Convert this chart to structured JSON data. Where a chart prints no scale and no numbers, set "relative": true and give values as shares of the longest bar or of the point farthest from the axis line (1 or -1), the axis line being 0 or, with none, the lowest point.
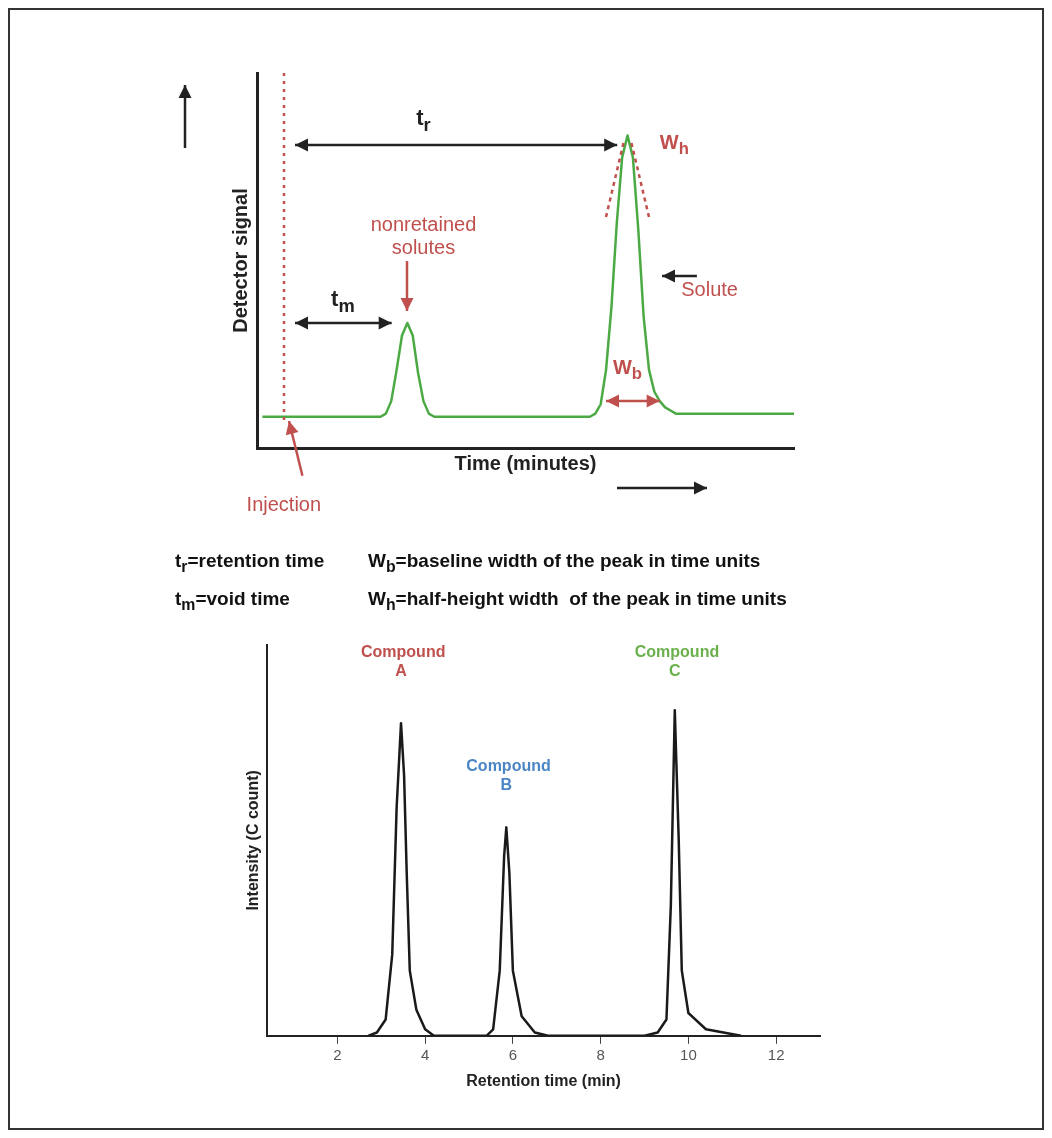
{
  "chart_data": [
    {
      "type": "line",
      "xlabel": "Time (minutes)",
      "ylabel": "Detector signal",
      "relative": true,
      "tick_labels": false,
      "grid": false,
      "legend": false,
      "marker": "none",
      "categories": [
        null,
        null,
        null,
        null,
        null,
        null,
        null,
        null,
        null,
        null,
        null,
        null,
        null,
        null,
        null,
        null,
        null,
        null,
        null,
        null,
        null,
        null,
        null,
        null,
        null,
        null,
        null,
        null,
        null,
        null,
        null,
        null,
        null,
        null,
        null,
        null,
        null,
        null,
        null,
        null,
        null,
        null,
        null,
        null,
        null,
        null,
        null,
        null,
        null,
        null,
        null,
        null,
        null,
        null,
        null,
        null,
        null,
        null,
        null,
        null,
        null,
        null,
        null,
        null,
        null,
        null,
        null,
        null,
        null,
        null,
        null,
        null,
        null,
        null,
        null,
        null,
        null,
        null,
        null,
        null,
        null,
        null,
        null,
        null,
        null,
        null,
        null,
        null,
        null,
        null,
        null,
        null,
        null,
        null,
        null,
        null,
        null,
        null,
        null,
        null,
        null
      ],
      "series": [
        {
          "color": "#4caa44",
          "values": [
            null,
            0.1,
            0.1,
            0.1,
            0.1,
            0.1,
            0.1,
            0.1,
            0.1,
            0.1,
            0.1,
            0.1,
            0.1,
            0.1,
            0.1,
            0.1,
            0.1,
            0.1,
            0.1,
            0.1,
            0.1,
            0.1,
            0.1,
            0.1,
            0.11,
            0.15,
            0.25,
            0.36,
            0.4,
            0.36,
            0.24,
            0.15,
            0.11,
            0.1,
            0.1,
            0.1,
            0.1,
            0.1,
            0.1,
            0.1,
            0.1,
            0.1,
            0.1,
            0.1,
            0.1,
            0.1,
            0.1,
            0.1,
            0.1,
            0.1,
            0.1,
            0.1,
            0.1,
            0.1,
            0.1,
            0.1,
            0.1,
            0.1,
            0.1,
            0.1,
            0.1,
            0.1,
            0.1,
            0.11,
            0.14,
            0.25,
            0.45,
            0.72,
            0.93,
            1,
            0.93,
            0.7,
            0.42,
            0.25,
            0.18,
            0.15,
            0.13,
            0.12,
            0.11,
            0.11,
            0.11,
            0.11,
            0.11,
            0.11,
            0.11,
            0.11,
            0.11,
            0.11,
            0.11,
            0.11,
            0.11,
            0.11,
            0.11,
            0.11,
            0.11,
            0.11,
            0.11,
            0.11,
            0.11,
            0.11,
            0.11
          ]
        }
      ],
      "annotations": [
        "t$_{r}$",
        "t$_{m}$",
        "nonretained solutes",
        "Solute",
        "W$_{h}$",
        "W$_{b}$",
        "t$_{r}$=retention time",
        "W$_{b}$=baseline width of the peak in time units",
        "t$_{m}$=void time",
        "W$_{h}$=half-height width  of the peak in time units",
        "Injection"
      ]
    },
    {
      "type": "line",
      "xlabel": "Retention time (min)",
      "ylabel": "Intensity (C count)",
      "relative": true,
      "tick_labels": "x",
      "grid": false,
      "legend": false,
      "marker": "none",
      "x": [
        2.7,
        2.9,
        3.1,
        3.25,
        3.35,
        3.45,
        3.52,
        3.58,
        3.65,
        3.8,
        4.0,
        4.2,
        5.4,
        5.55,
        5.7,
        5.8,
        5.85,
        5.92,
        6.0,
        6.2,
        6.5,
        6.8,
        9.0,
        9.3,
        9.5,
        9.6,
        9.69,
        9.78,
        9.85,
        10.0,
        10.4,
        11.2
      ],
      "xlim": [
        0.4,
        13
      ],
      "xticks": [
        2,
        4,
        6,
        8,
        10,
        12
      ],
      "series": [
        {
          "color": "#1a1a1a",
          "values": [
            0,
            0.01,
            0.05,
            0.25,
            0.7,
            0.96,
            0.8,
            0.5,
            0.2,
            0.08,
            0.02,
            0,
            0,
            0.02,
            0.2,
            0.55,
            0.64,
            0.5,
            0.2,
            0.06,
            0.01,
            0,
            0,
            0.01,
            0.05,
            0.4,
            1,
            0.6,
            0.2,
            0.07,
            0.02,
            0
          ]
        }
      ],
      "annotations": [
        "Compound A",
        "Compound B",
        "Compound C"
      ]
    }
  ]
}
